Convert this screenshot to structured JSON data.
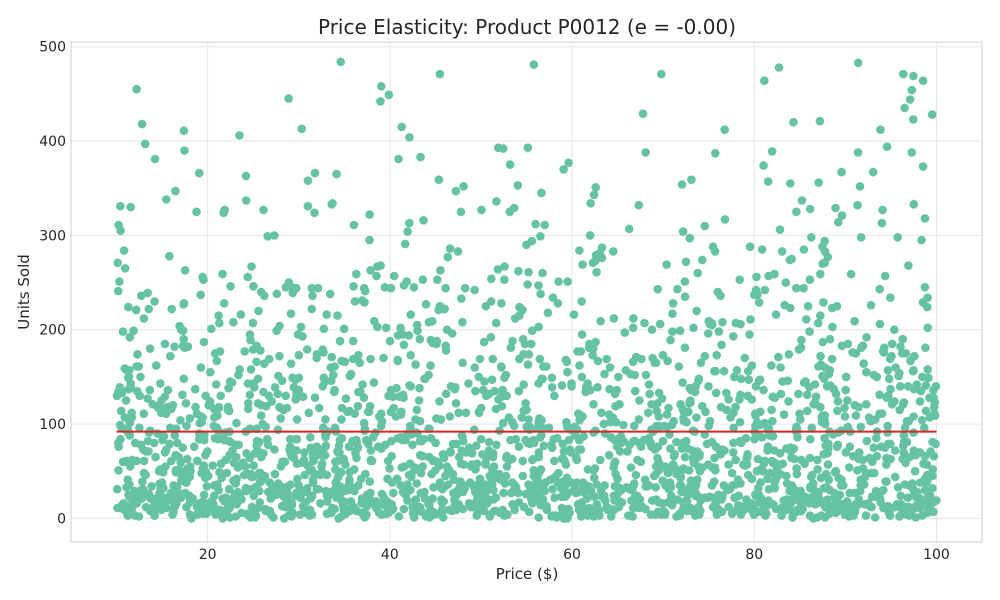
{
  "chart_data": {
    "type": "scatter",
    "title": "Price Elasticity: Product P0012 (e = -0.00)",
    "xlabel": "Price ($)",
    "ylabel": "Units Sold",
    "xlim": [
      5,
      105
    ],
    "ylim": [
      -25,
      505
    ],
    "xticks": [
      20,
      40,
      60,
      80,
      100
    ],
    "yticks": [
      0,
      100,
      200,
      300,
      400,
      500
    ],
    "grid": true,
    "legend": "none",
    "colors": {
      "points": "#66c2a5",
      "fit_line": "#d62728",
      "grid": "#e6e6e6",
      "frame": "#cccccc"
    },
    "fit_line": {
      "x": [
        10,
        100
      ],
      "y": [
        92,
        92
      ]
    },
    "sample_points": [
      {
        "x": 12.2,
        "y": 455
      },
      {
        "x": 12.8,
        "y": 418
      },
      {
        "x": 34.6,
        "y": 484
      },
      {
        "x": 55.8,
        "y": 481
      },
      {
        "x": 69.8,
        "y": 471
      },
      {
        "x": 81.1,
        "y": 464
      },
      {
        "x": 91.4,
        "y": 483
      },
      {
        "x": 96.5,
        "y": 435
      },
      {
        "x": 28.9,
        "y": 445
      },
      {
        "x": 39.9,
        "y": 449
      }
    ],
    "generated_points": {
      "count": 2400,
      "x_range": [
        10,
        100
      ],
      "y_range": [
        0,
        484
      ],
      "note_distribution": "dense near y 0-150, sparser toward 480"
    }
  }
}
